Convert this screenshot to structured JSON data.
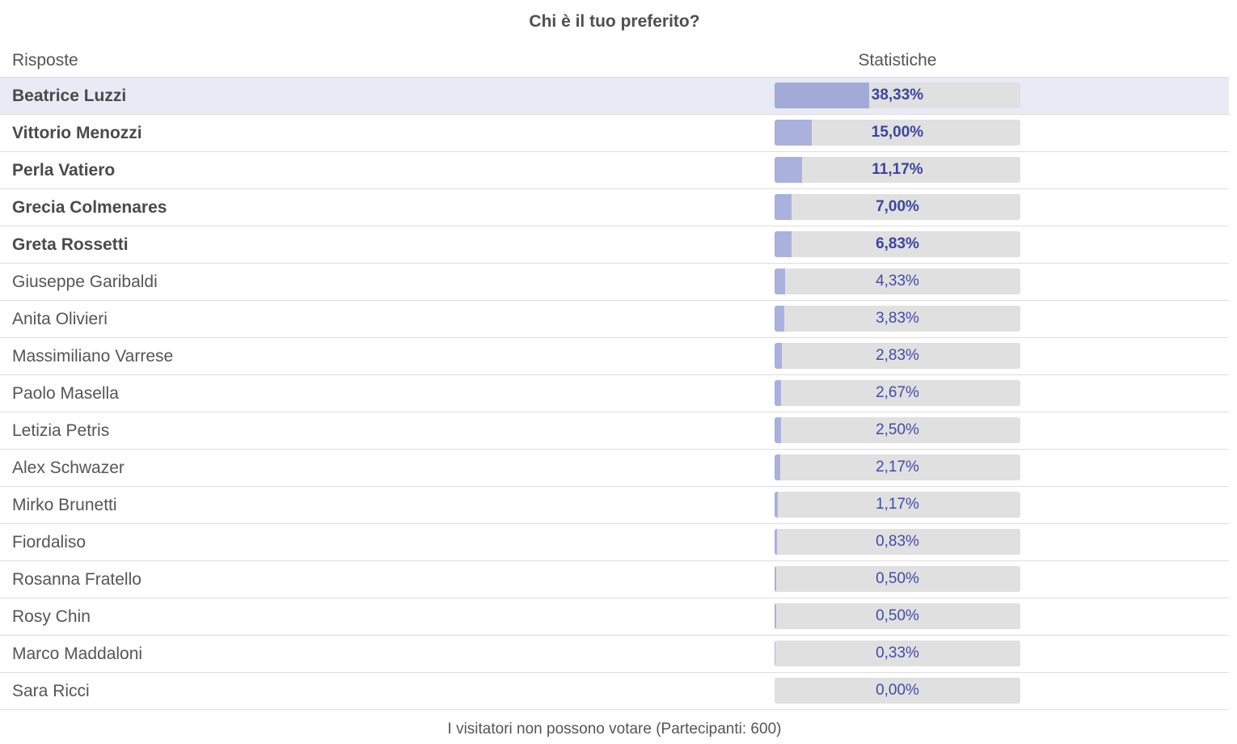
{
  "poll": {
    "title": "Chi è il tuo preferito?",
    "header": {
      "answers_label": "Risposte",
      "stats_label": "Statistiche"
    },
    "footer": "I visitatori non possono votare (Partecipanti: 600)"
  },
  "colors": {
    "bar_fill": "#aab1dd",
    "bar_track": "#e0e0e0",
    "percent_text": "#3f4da8",
    "highlight_row": "#e8eaf5"
  },
  "chart_data": {
    "type": "bar",
    "categories": [
      "Beatrice Luzzi",
      "Vittorio Menozzi",
      "Perla Vatiero",
      "Grecia Colmenares",
      "Greta Rossetti",
      "Giuseppe Garibaldi",
      "Anita Olivieri",
      "Massimiliano Varrese",
      "Paolo Masella",
      "Letizia Petris",
      "Alex Schwazer",
      "Mirko Brunetti",
      "Fiordaliso",
      "Rosanna Fratello",
      "Rosy Chin",
      "Marco Maddaloni",
      "Sara Ricci"
    ],
    "values": [
      38.33,
      15.0,
      11.17,
      7.0,
      6.83,
      4.33,
      3.83,
      2.83,
      2.67,
      2.5,
      2.17,
      1.17,
      0.83,
      0.5,
      0.5,
      0.33,
      0.0
    ],
    "labels": [
      "38,33%",
      "15,00%",
      "11,17%",
      "7,00%",
      "6,83%",
      "4,33%",
      "3,83%",
      "2,83%",
      "2,67%",
      "2,50%",
      "2,17%",
      "1,17%",
      "0,83%",
      "0,50%",
      "0,50%",
      "0,33%",
      "0,00%"
    ],
    "ylim": [
      0,
      100
    ]
  },
  "rows": [
    {
      "answer": "Beatrice Luzzi",
      "percent": 38.33,
      "label": "38,33%",
      "bold": true,
      "highlight": true
    },
    {
      "answer": "Vittorio Menozzi",
      "percent": 15.0,
      "label": "15,00%",
      "bold": true,
      "highlight": false
    },
    {
      "answer": "Perla Vatiero",
      "percent": 11.17,
      "label": "11,17%",
      "bold": true,
      "highlight": false
    },
    {
      "answer": "Grecia Colmenares",
      "percent": 7.0,
      "label": "7,00%",
      "bold": true,
      "highlight": false
    },
    {
      "answer": "Greta Rossetti",
      "percent": 6.83,
      "label": "6,83%",
      "bold": true,
      "highlight": false
    },
    {
      "answer": "Giuseppe Garibaldi",
      "percent": 4.33,
      "label": "4,33%",
      "bold": false,
      "highlight": false
    },
    {
      "answer": "Anita Olivieri",
      "percent": 3.83,
      "label": "3,83%",
      "bold": false,
      "highlight": false
    },
    {
      "answer": "Massimiliano Varrese",
      "percent": 2.83,
      "label": "2,83%",
      "bold": false,
      "highlight": false
    },
    {
      "answer": "Paolo Masella",
      "percent": 2.67,
      "label": "2,67%",
      "bold": false,
      "highlight": false
    },
    {
      "answer": "Letizia Petris",
      "percent": 2.5,
      "label": "2,50%",
      "bold": false,
      "highlight": false
    },
    {
      "answer": "Alex Schwazer",
      "percent": 2.17,
      "label": "2,17%",
      "bold": false,
      "highlight": false
    },
    {
      "answer": "Mirko Brunetti",
      "percent": 1.17,
      "label": "1,17%",
      "bold": false,
      "highlight": false
    },
    {
      "answer": "Fiordaliso",
      "percent": 0.83,
      "label": "0,83%",
      "bold": false,
      "highlight": false
    },
    {
      "answer": "Rosanna Fratello",
      "percent": 0.5,
      "label": "0,50%",
      "bold": false,
      "highlight": false
    },
    {
      "answer": "Rosy Chin",
      "percent": 0.5,
      "label": "0,50%",
      "bold": false,
      "highlight": false
    },
    {
      "answer": "Marco Maddaloni",
      "percent": 0.33,
      "label": "0,33%",
      "bold": false,
      "highlight": false
    },
    {
      "answer": "Sara Ricci",
      "percent": 0.0,
      "label": "0,00%",
      "bold": false,
      "highlight": false
    }
  ]
}
